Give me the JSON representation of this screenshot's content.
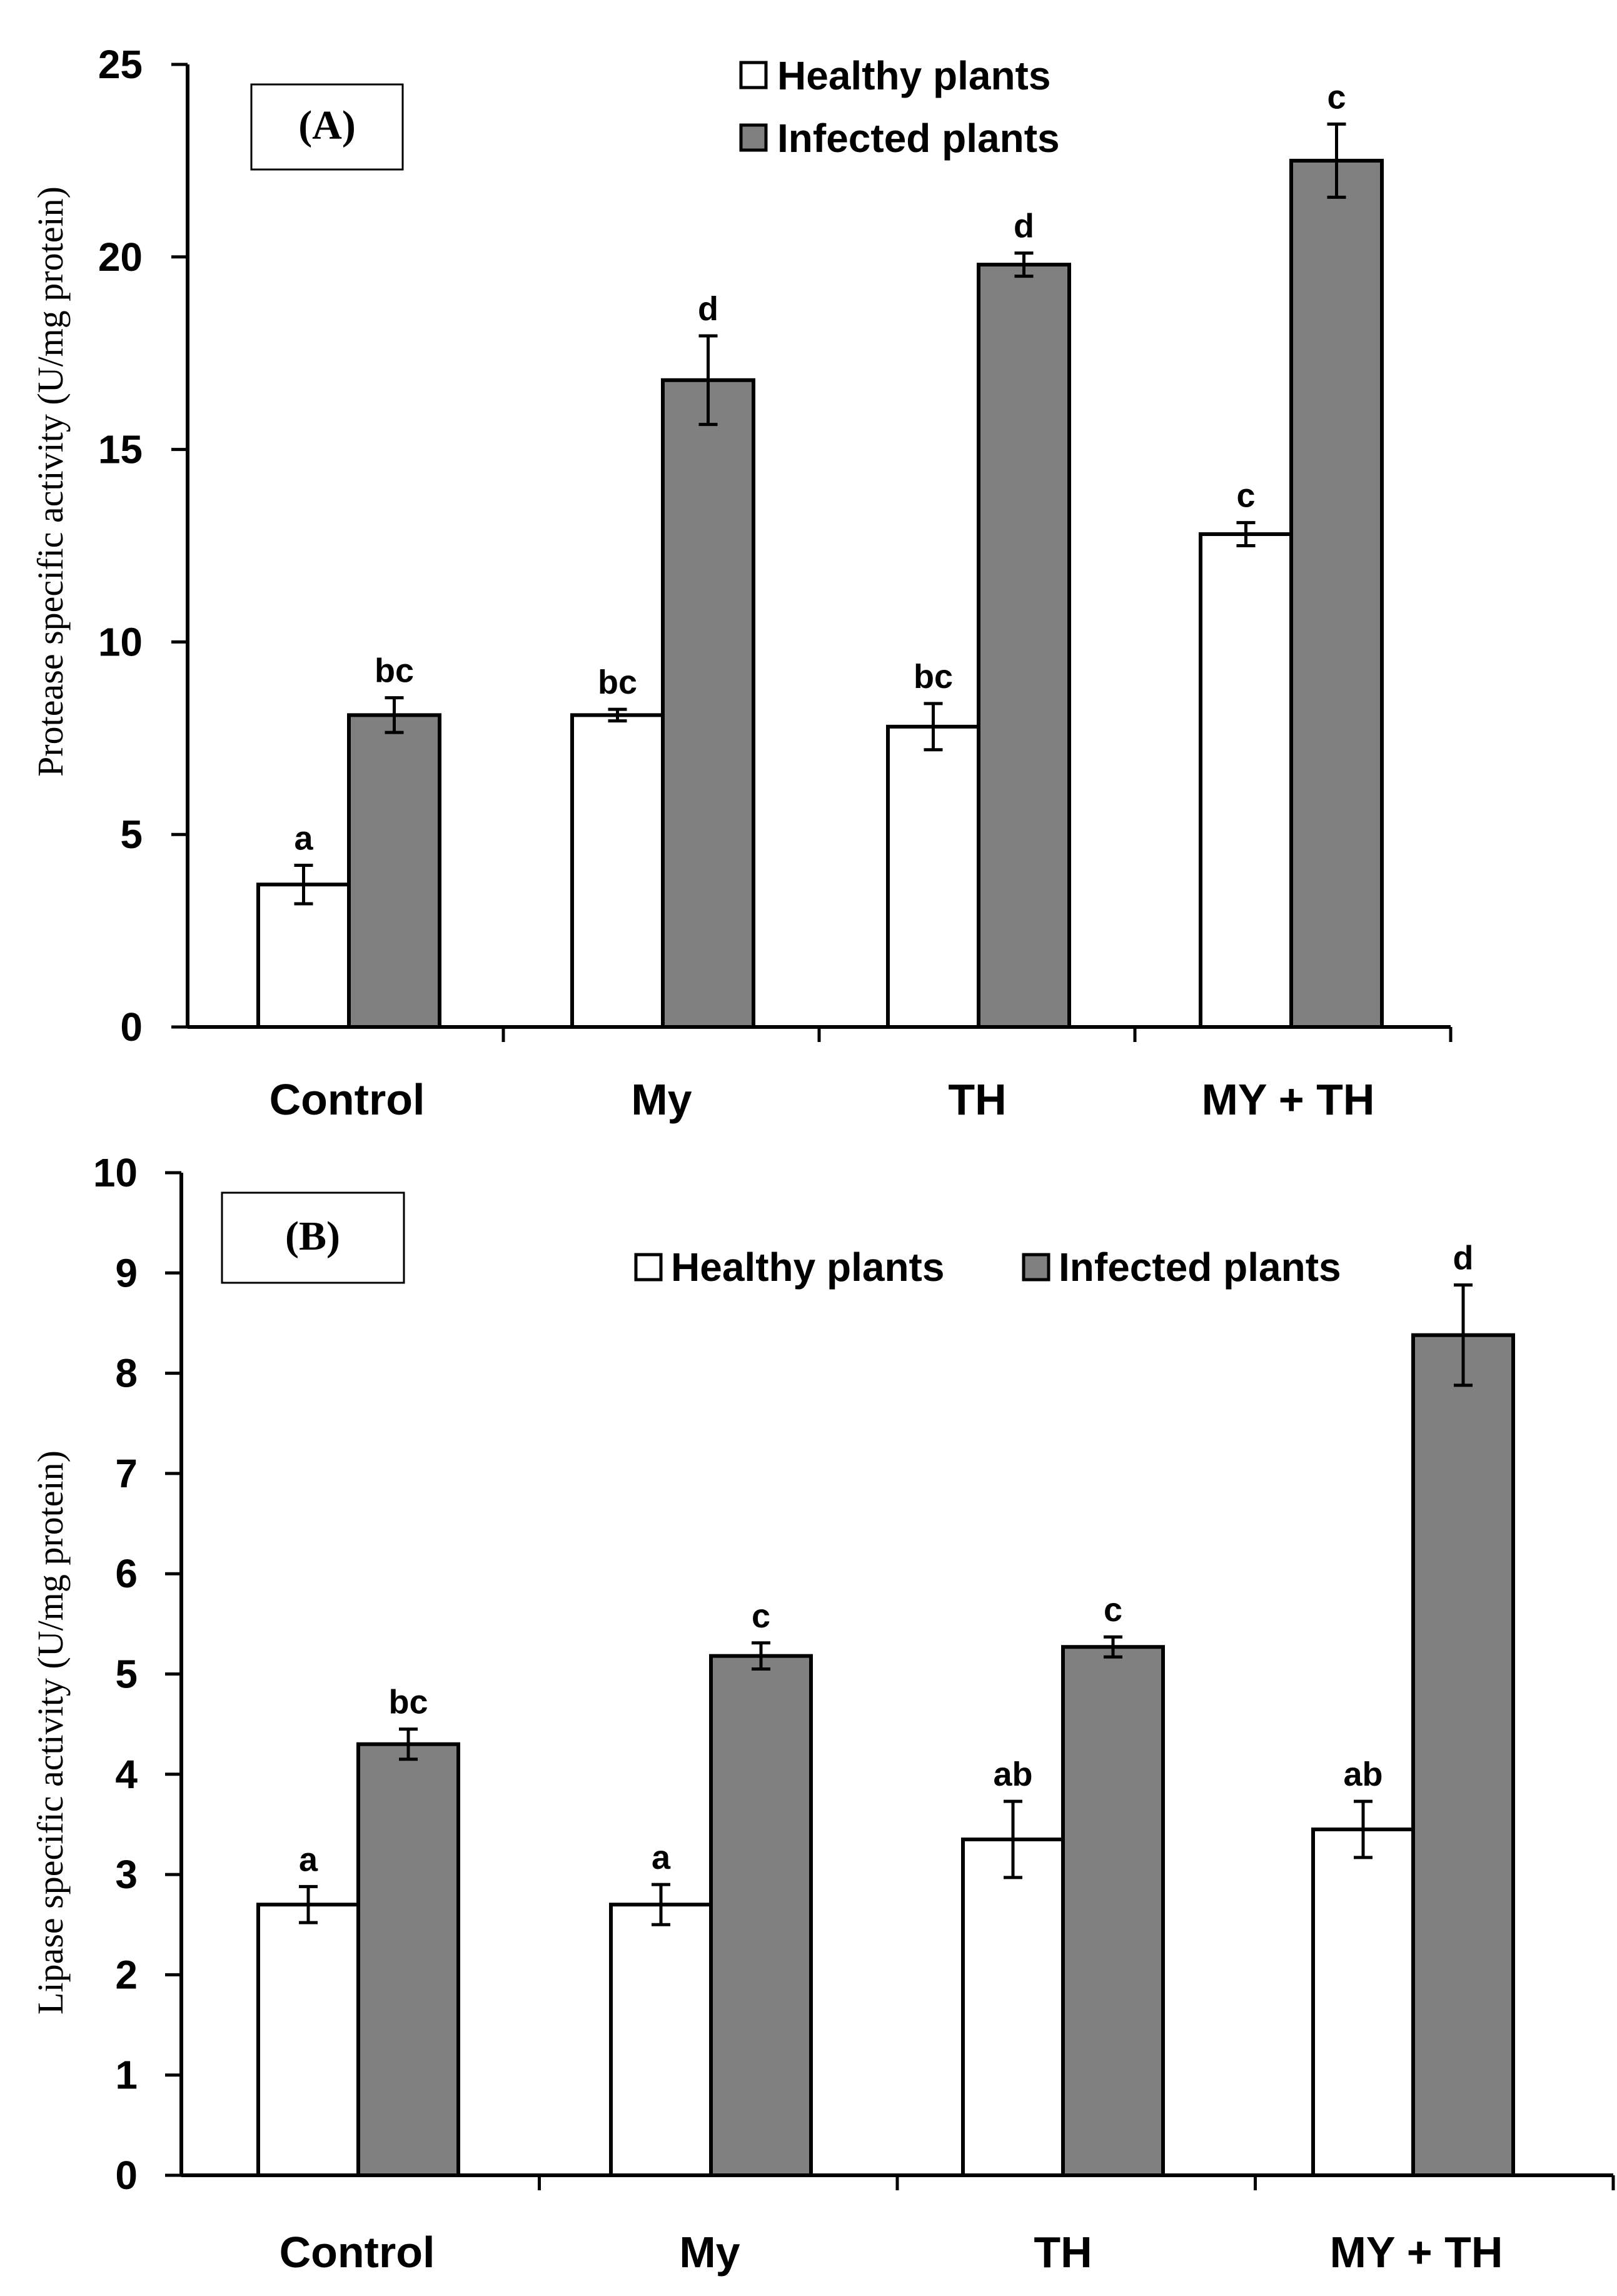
{
  "chart_data": [
    {
      "id": "A",
      "type": "bar",
      "panel_label": "(A)",
      "categories": [
        "Control",
        "My",
        "TH",
        "MY + TH"
      ],
      "ylabel": "Protease specific activity (U/mg protein)",
      "ylim": [
        0,
        25
      ],
      "yticks": [
        "0",
        "5",
        "10",
        "15",
        "20",
        "25"
      ],
      "ytick_values": [
        0,
        5,
        10,
        15,
        20,
        25
      ],
      "legend_position": "top-center",
      "series": [
        {
          "name": "Healthy plants",
          "color": "#ffffff",
          "values": [
            3.7,
            8.1,
            7.8,
            12.8
          ],
          "errors": [
            0.5,
            0.15,
            0.6,
            0.3
          ],
          "letters": [
            "a",
            "bc",
            "bc",
            "c"
          ]
        },
        {
          "name": "Infected plants",
          "color": "#808080",
          "values": [
            8.1,
            16.8,
            19.8,
            22.5
          ],
          "errors": [
            0.45,
            1.15,
            0.3,
            0.95
          ],
          "letters": [
            "bc",
            "d",
            "d",
            "c"
          ]
        }
      ]
    },
    {
      "id": "B",
      "type": "bar",
      "panel_label": "(B)",
      "categories": [
        "Control",
        "My",
        "TH",
        "MY + TH"
      ],
      "ylabel": "Lipase specific activity (U/mg protein)",
      "ylim": [
        0,
        10
      ],
      "yticks": [
        "0",
        "1",
        "2",
        "3",
        "4",
        "5",
        "6",
        "7",
        "8",
        "9",
        "10"
      ],
      "ytick_values": [
        0,
        1,
        2,
        3,
        4,
        5,
        6,
        7,
        8,
        9,
        10
      ],
      "legend_position": "top-right",
      "series": [
        {
          "name": "Healthy plants",
          "color": "#ffffff",
          "values": [
            2.7,
            2.7,
            3.35,
            3.45
          ],
          "errors": [
            0.18,
            0.2,
            0.38,
            0.28
          ],
          "letters": [
            "a",
            "a",
            "ab",
            "ab"
          ]
        },
        {
          "name": "Infected plants",
          "color": "#808080",
          "values": [
            4.3,
            5.18,
            5.27,
            8.38
          ],
          "errors": [
            0.15,
            0.13,
            0.1,
            0.5
          ],
          "letters": [
            "bc",
            "c",
            "c",
            "d"
          ]
        }
      ]
    }
  ]
}
